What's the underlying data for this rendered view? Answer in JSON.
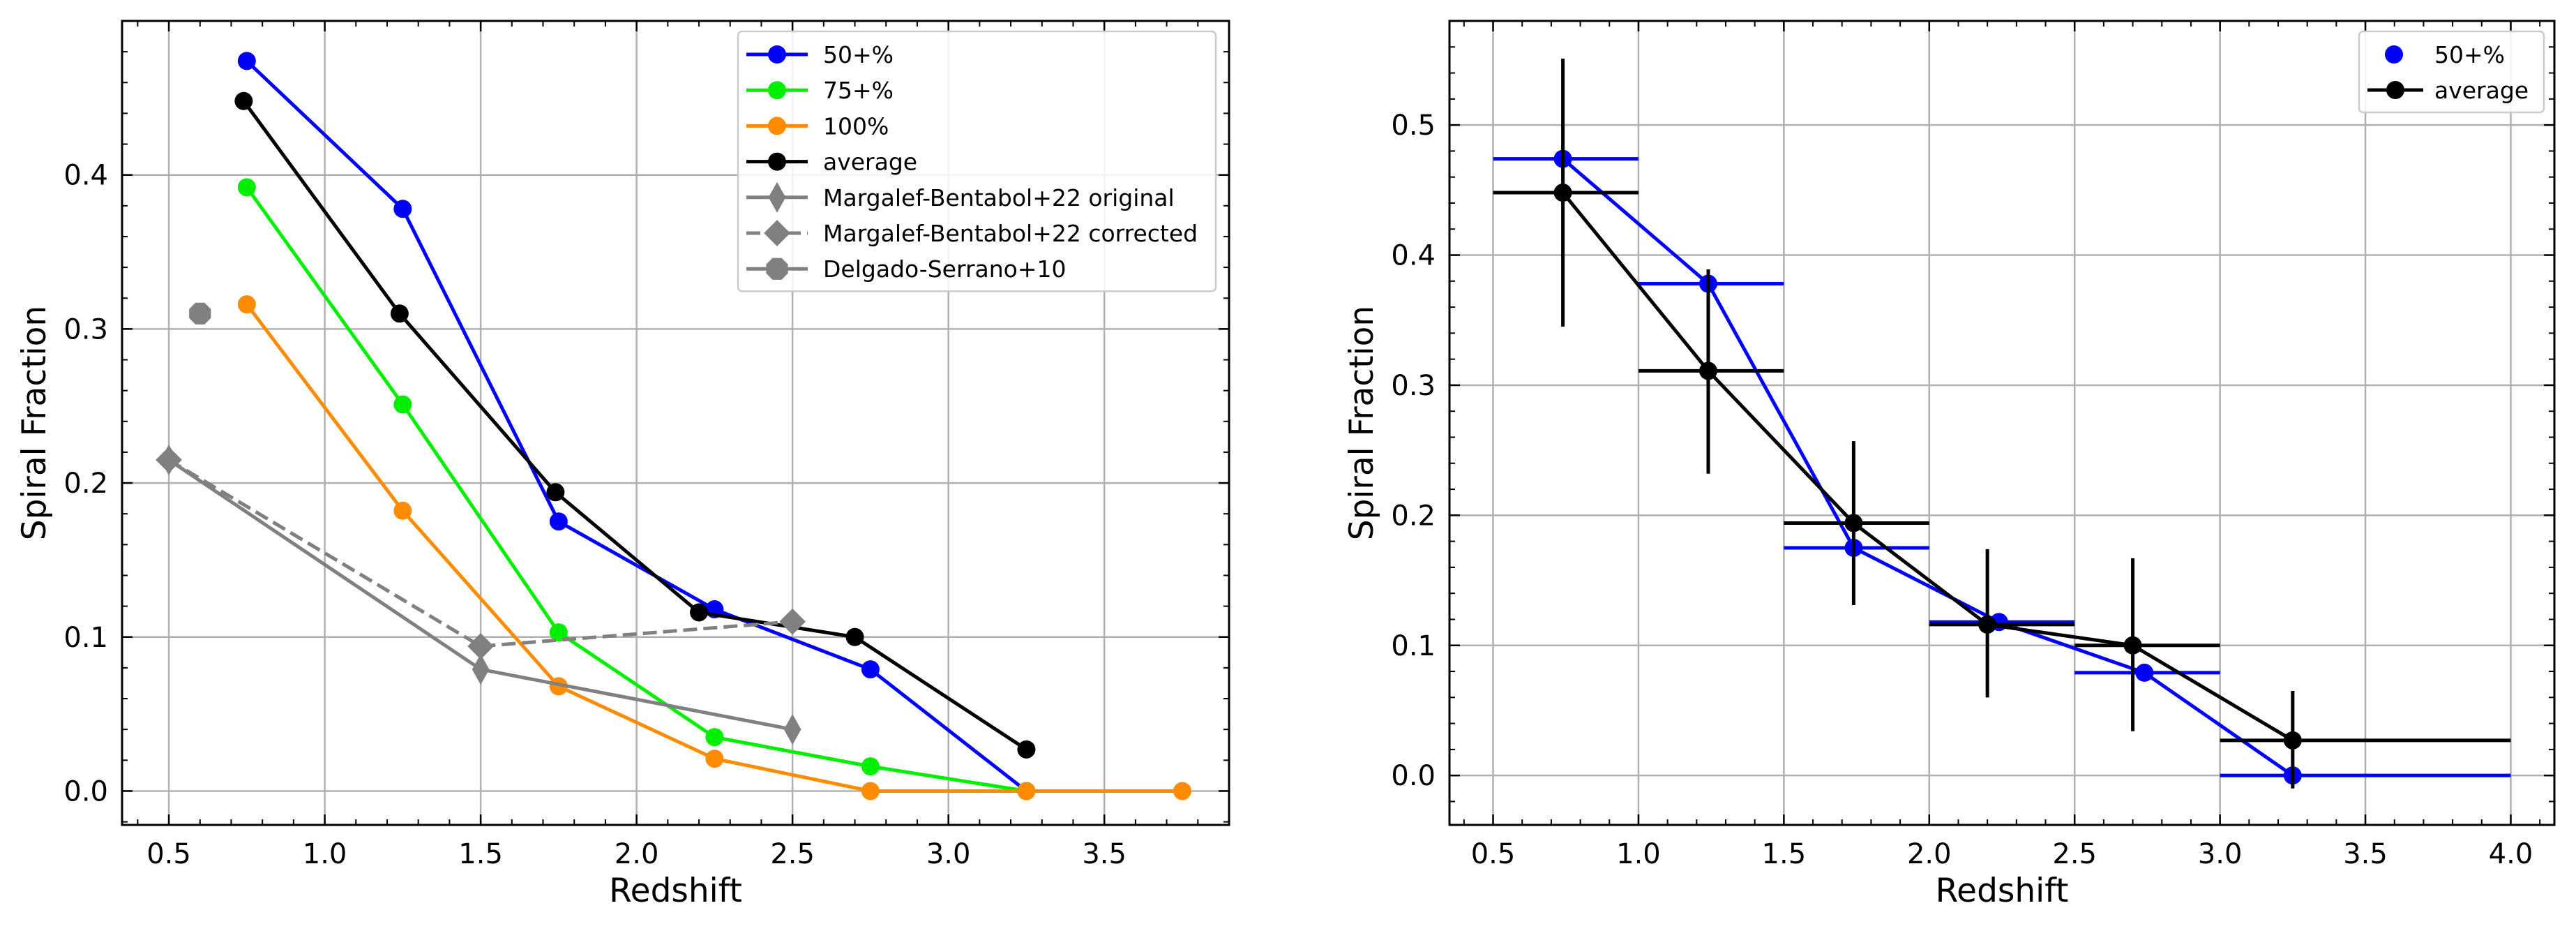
{
  "chart_data": [
    {
      "type": "line",
      "xlabel": "Redshift",
      "ylabel": "Spiral Fraction",
      "xlim": [
        0.35,
        3.9
      ],
      "ylim": [
        -0.022,
        0.5
      ],
      "xticks": [
        0.5,
        1.0,
        1.5,
        2.0,
        2.5,
        3.0,
        3.5
      ],
      "xtick_labels": [
        "0.5",
        "1.0",
        "1.5",
        "2.0",
        "2.5",
        "3.0",
        "3.5"
      ],
      "yticks": [
        0.0,
        0.1,
        0.2,
        0.3,
        0.4
      ],
      "ytick_labels": [
        "0.0",
        "0.1",
        "0.2",
        "0.3",
        "0.4"
      ],
      "grid": true,
      "legend_position": "upper right",
      "series": [
        {
          "name": "50+%",
          "color": "#0000ff",
          "marker": "circle",
          "linestyle": "solid",
          "x": [
            0.75,
            1.25,
            1.75,
            2.25,
            2.75,
            3.25
          ],
          "y": [
            0.474,
            0.378,
            0.175,
            0.118,
            0.079,
            0.0
          ]
        },
        {
          "name": "75+%",
          "color": "#00ee00",
          "marker": "circle",
          "linestyle": "solid",
          "x": [
            0.75,
            1.25,
            1.75,
            2.25,
            2.75,
            3.25
          ],
          "y": [
            0.392,
            0.251,
            0.103,
            0.035,
            0.016,
            0.0
          ]
        },
        {
          "name": "100%",
          "color": "#ff8c00",
          "marker": "circle",
          "linestyle": "solid",
          "x": [
            0.75,
            1.25,
            1.75,
            2.25,
            2.75,
            3.25,
            3.75
          ],
          "y": [
            0.316,
            0.182,
            0.068,
            0.021,
            0.0,
            0.0,
            0.0
          ]
        },
        {
          "name": "average",
          "color": "#000000",
          "marker": "circle",
          "linestyle": "solid",
          "x": [
            0.74,
            1.24,
            1.74,
            2.2,
            2.7,
            3.25
          ],
          "y": [
            0.448,
            0.31,
            0.194,
            0.116,
            0.1,
            0.027
          ]
        },
        {
          "name": "Margalef-Bentabol+22 original",
          "color": "#808080",
          "marker": "thin_diamond",
          "linestyle": "solid",
          "x": [
            0.5,
            1.5,
            2.5
          ],
          "y": [
            0.215,
            0.079,
            0.04
          ]
        },
        {
          "name": "Margalef-Bentabol+22 corrected",
          "color": "#808080",
          "marker": "diamond",
          "linestyle": "dashed",
          "x": [
            0.5,
            1.5,
            2.5
          ],
          "y": [
            0.215,
            0.094,
            0.11
          ]
        },
        {
          "name": "Delgado-Serrano+10",
          "color": "#808080",
          "marker": "octagon",
          "linestyle": "solid",
          "x": [
            0.6
          ],
          "y": [
            0.31
          ]
        }
      ]
    },
    {
      "type": "scatter",
      "xlabel": "Redshift",
      "ylabel": "Spiral Fraction",
      "xlim": [
        0.35,
        4.15
      ],
      "ylim": [
        -0.038,
        0.58
      ],
      "xticks": [
        0.5,
        1.0,
        1.5,
        2.0,
        2.5,
        3.0,
        3.5,
        4.0
      ],
      "xtick_labels": [
        "0.5",
        "1.0",
        "1.5",
        "2.0",
        "2.5",
        "3.0",
        "3.5",
        "4.0"
      ],
      "yticks": [
        0.0,
        0.1,
        0.2,
        0.3,
        0.4,
        0.5
      ],
      "ytick_labels": [
        "0.0",
        "0.1",
        "0.2",
        "0.3",
        "0.4",
        "0.5"
      ],
      "grid": true,
      "legend_position": "upper right",
      "series": [
        {
          "name": "50+%",
          "color": "#0000ff",
          "marker": "circle",
          "connect": true,
          "x": [
            0.74,
            1.24,
            1.74,
            2.24,
            2.74,
            3.25
          ],
          "y": [
            0.474,
            0.378,
            0.175,
            0.118,
            0.079,
            0.0
          ],
          "xerr_lo": [
            0.5,
            1.0,
            1.5,
            2.0,
            2.5,
            3.0
          ],
          "xerr_hi": [
            1.0,
            1.5,
            2.0,
            2.5,
            3.0,
            4.0
          ]
        },
        {
          "name": "average",
          "color": "#000000",
          "marker": "circle",
          "connect": true,
          "x": [
            0.74,
            1.24,
            1.74,
            2.2,
            2.7,
            3.25
          ],
          "y": [
            0.448,
            0.311,
            0.194,
            0.116,
            0.1,
            0.027
          ],
          "xerr_lo": [
            0.5,
            1.0,
            1.5,
            2.0,
            2.5,
            3.0
          ],
          "xerr_hi": [
            1.0,
            1.5,
            2.0,
            2.5,
            3.0,
            4.0
          ],
          "yerr_lo": [
            0.345,
            0.232,
            0.131,
            0.06,
            0.034,
            -0.01
          ],
          "yerr_hi": [
            0.551,
            0.389,
            0.257,
            0.174,
            0.167,
            0.065
          ]
        }
      ]
    }
  ]
}
